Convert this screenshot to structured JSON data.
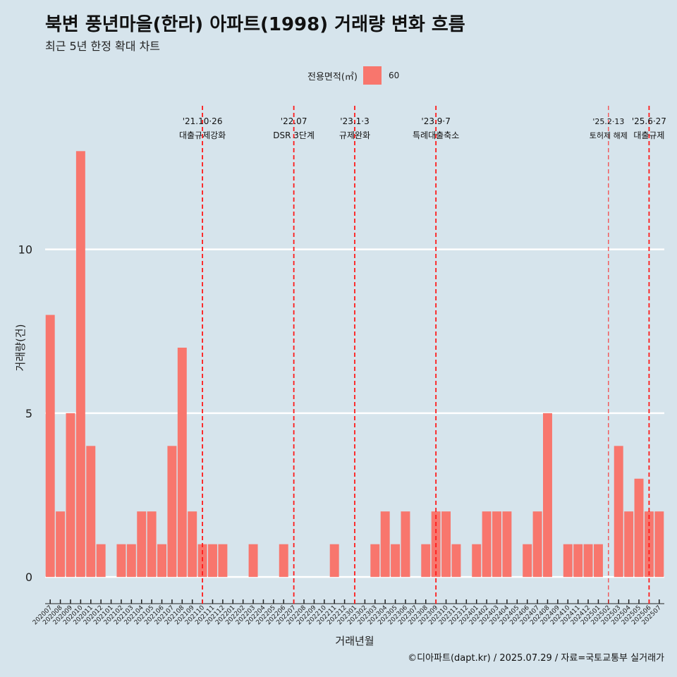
{
  "header": {
    "title": "북변 풍년마을(한라) 아파트(1998) 거래량 변화 흐름",
    "subtitle": "최근 5년 한정 확대 차트"
  },
  "legend": {
    "title": "전용면적(㎡)",
    "item": "60",
    "color": "#f8766d"
  },
  "caption": "©디아파트(dapt.kr) / 2025.07.29 / 자료=국토교통부 실거래가",
  "chart_data": {
    "type": "bar",
    "xlabel": "거래년월",
    "ylabel": "거래량(건)",
    "ylim": [
      -0.6,
      14.6
    ],
    "yticks": [
      0,
      5,
      10
    ],
    "grid": true,
    "legend_position": "top",
    "bar_color": "#f8766d",
    "categories": [
      "202007",
      "202008",
      "202009",
      "202010",
      "202011",
      "202012",
      "202101",
      "202102",
      "202103",
      "202104",
      "202105",
      "202106",
      "202107",
      "202108",
      "202109",
      "202110",
      "202111",
      "202112",
      "202201",
      "202202",
      "202203",
      "202204",
      "202205",
      "202206",
      "202207",
      "202208",
      "202209",
      "202210",
      "202211",
      "202212",
      "202301",
      "202302",
      "202303",
      "202304",
      "202305",
      "202306",
      "202307",
      "202308",
      "202309",
      "202310",
      "202311",
      "202312",
      "202401",
      "202402",
      "202403",
      "202404",
      "202405",
      "202406",
      "202407",
      "202408",
      "202409",
      "202410",
      "202411",
      "202412",
      "202501",
      "202502",
      "202503",
      "202504",
      "202505",
      "202506",
      "202507"
    ],
    "values": [
      8,
      2,
      5,
      13,
      4,
      1,
      0,
      1,
      1,
      2,
      2,
      1,
      4,
      7,
      2,
      1,
      1,
      1,
      0,
      0,
      1,
      0,
      0,
      1,
      0,
      0,
      0,
      0,
      1,
      0,
      0,
      0,
      1,
      2,
      1,
      2,
      0,
      1,
      2,
      2,
      1,
      0,
      1,
      2,
      2,
      2,
      0,
      1,
      2,
      5,
      0,
      1,
      1,
      1,
      1,
      0,
      4,
      2,
      3,
      2,
      2
    ],
    "annotations": [
      {
        "x": "202110",
        "date": "'21.10·26",
        "label": "대출규제강화",
        "style": "bold"
      },
      {
        "x": "202207",
        "date": "'22.07",
        "label": "DSR 3단계",
        "style": "bold"
      },
      {
        "x": "202301",
        "date": "'23.1·3",
        "label": "규제완화",
        "style": "bold"
      },
      {
        "x": "202309",
        "date": "'23.9·7",
        "label": "특례대출축소",
        "style": "bold"
      },
      {
        "x": "202502",
        "date": "'25.2·13",
        "label": "토허제 해제",
        "style": "thin"
      },
      {
        "x": "202506",
        "date": "'25.6·27",
        "label": "대출규제",
        "style": "bold"
      }
    ]
  }
}
